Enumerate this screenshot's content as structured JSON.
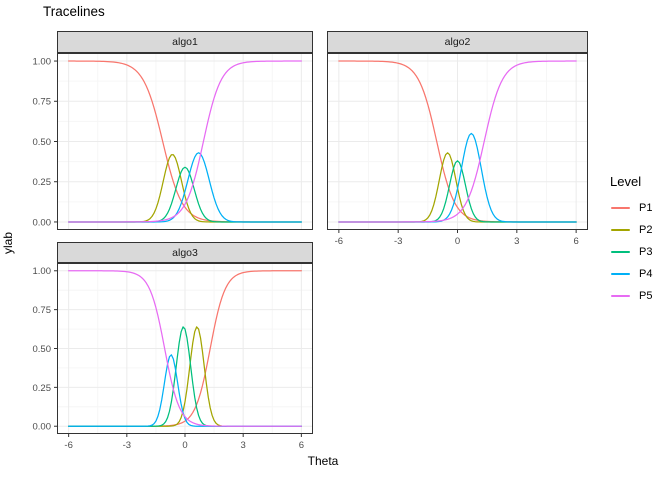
{
  "title": "Tracelines",
  "axes": {
    "x_label": "Theta",
    "y_label": "ylab",
    "x_ticks": [
      "-6",
      "-3",
      "0",
      "3",
      "6"
    ],
    "x_tick_values": [
      -6,
      -3,
      0,
      3,
      6
    ],
    "x_minor_ticks": [
      -4.5,
      -1.5,
      1.5,
      4.5
    ],
    "y_ticks": [
      "0.00",
      "0.25",
      "0.50",
      "0.75",
      "1.00"
    ],
    "y_tick_values": [
      0,
      0.25,
      0.5,
      0.75,
      1
    ],
    "y_minor_ticks": [
      0.125,
      0.375,
      0.625,
      0.875
    ]
  },
  "legend": {
    "title": "Level",
    "entries": [
      {
        "label": "P1",
        "color": "#F8766D"
      },
      {
        "label": "P2",
        "color": "#A3A500"
      },
      {
        "label": "P3",
        "color": "#00BF7D"
      },
      {
        "label": "P4",
        "color": "#00B0F6"
      },
      {
        "label": "P5",
        "color": "#E76BF3"
      }
    ]
  },
  "style": {
    "strip_bg": "#D9D9D9",
    "panel_bg": "#FFFFFF",
    "panel_border": "#333333",
    "grid_major": "#EBEBEB",
    "grid_minor": "#F6F6F6",
    "axis_text_color": "#4D4D4D",
    "tick_mark_color": "#333333"
  },
  "chart_data": {
    "type": "line",
    "title": "Tracelines",
    "xlabel": "Theta",
    "ylabel": "ylab",
    "x_range": [
      -6,
      6
    ],
    "y_range": [
      0,
      1
    ],
    "grid": true,
    "legend_position": "right",
    "facets": [
      {
        "label": "algo1",
        "show_x_axis": false,
        "show_y_axis": true,
        "series": [
          {
            "name": "P1",
            "shape": "sigmoid_fall",
            "center": -1.15,
            "slope": 2.0
          },
          {
            "name": "P2",
            "shape": "bell",
            "center": -0.65,
            "peak": 0.42,
            "sigma": 0.47
          },
          {
            "name": "P3",
            "shape": "bell",
            "center": 0.0,
            "peak": 0.34,
            "sigma": 0.47
          },
          {
            "name": "P4",
            "shape": "bell",
            "center": 0.7,
            "peak": 0.43,
            "sigma": 0.55
          },
          {
            "name": "P5",
            "shape": "sigmoid_rise",
            "center": 0.95,
            "slope": 2.2
          }
        ]
      },
      {
        "label": "algo2",
        "show_x_axis": true,
        "show_y_axis": false,
        "series": [
          {
            "name": "P1",
            "shape": "sigmoid_fall",
            "center": -1.05,
            "slope": 2.2
          },
          {
            "name": "P2",
            "shape": "bell",
            "center": -0.5,
            "peak": 0.43,
            "sigma": 0.42
          },
          {
            "name": "P3",
            "shape": "bell",
            "center": 0.0,
            "peak": 0.38,
            "sigma": 0.4
          },
          {
            "name": "P4",
            "shape": "bell",
            "center": 0.7,
            "peak": 0.55,
            "sigma": 0.5
          },
          {
            "name": "P5",
            "shape": "sigmoid_rise",
            "center": 1.35,
            "slope": 2.2
          }
        ]
      },
      {
        "label": "algo3",
        "show_x_axis": true,
        "show_y_axis": true,
        "series": [
          {
            "name": "P1",
            "shape": "sigmoid_rise",
            "center": 1.3,
            "slope": 2.6
          },
          {
            "name": "P2",
            "shape": "bell",
            "center": 0.62,
            "peak": 0.64,
            "sigma": 0.37
          },
          {
            "name": "P3",
            "shape": "bell",
            "center": -0.08,
            "peak": 0.64,
            "sigma": 0.37
          },
          {
            "name": "P4",
            "shape": "bell",
            "center": -0.72,
            "peak": 0.46,
            "sigma": 0.34
          },
          {
            "name": "P5",
            "shape": "sigmoid_fall",
            "center": -1.05,
            "slope": 2.6
          }
        ]
      }
    ]
  }
}
